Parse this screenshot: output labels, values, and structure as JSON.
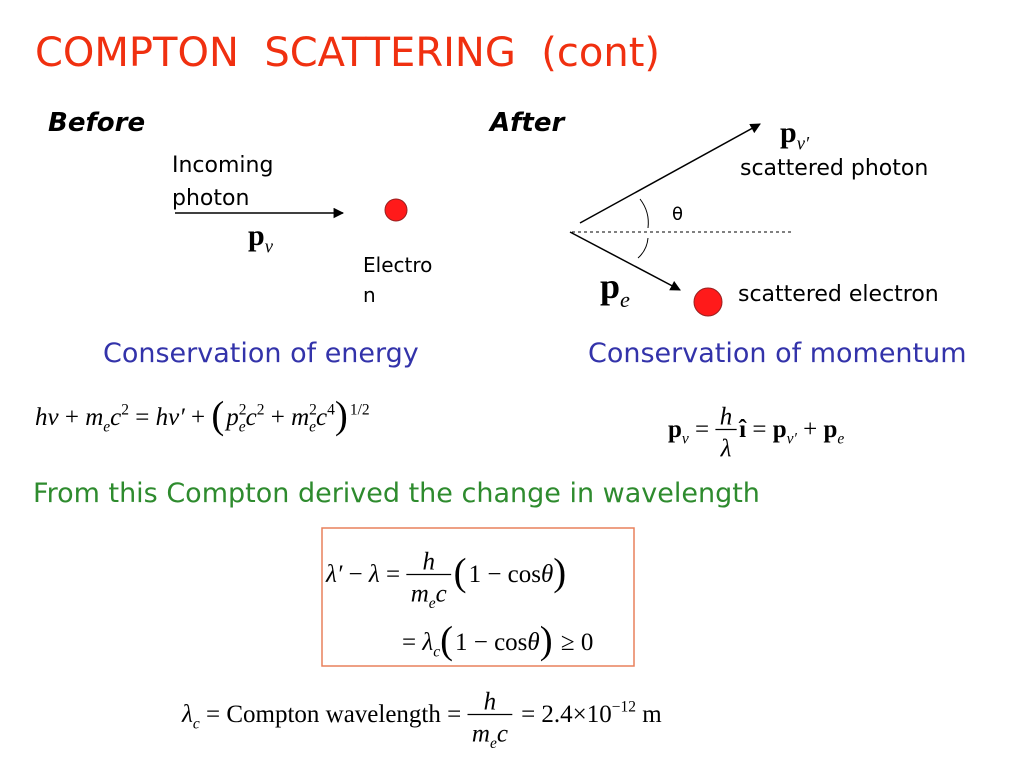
{
  "title": "COMPTON  SCATTERING  (cont)",
  "before": {
    "heading": "Before",
    "incoming_label": [
      "Incoming",
      "photon"
    ],
    "photon_momentum": [
      [
        "p",
        "b"
      ],
      [
        "ν",
        "sub"
      ]
    ],
    "electron_label": [
      "Electro",
      "n"
    ]
  },
  "after": {
    "heading": "After",
    "photon_momentum": [
      [
        "p",
        "b"
      ],
      [
        "ν′",
        "sub"
      ]
    ],
    "photon_label": "scattered photon",
    "angle": "θ",
    "electron_momentum": [
      [
        "p",
        "b"
      ],
      [
        "e",
        "sub"
      ]
    ],
    "electron_label": "scattered electron"
  },
  "energy": {
    "heading": "Conservation of energy",
    "equation": [
      [
        "h",
        "i"
      ],
      [
        "ν",
        "i"
      ],
      [
        " + ",
        "r"
      ],
      [
        "m",
        "i"
      ],
      [
        "e",
        "sub"
      ],
      [
        "c",
        "i"
      ],
      [
        "2",
        "sup"
      ],
      [
        " = ",
        "r"
      ],
      [
        "h",
        "i"
      ],
      [
        "ν′",
        "i"
      ],
      [
        " + ",
        "r"
      ],
      [
        "(",
        "big"
      ],
      [
        "p",
        "i"
      ],
      [
        "2",
        "supstack"
      ],
      [
        "e",
        "sub"
      ],
      [
        "c",
        "i"
      ],
      [
        "2",
        "sup"
      ],
      [
        " + ",
        "r"
      ],
      [
        "m",
        "i"
      ],
      [
        "2",
        "supstack"
      ],
      [
        "e",
        "sub"
      ],
      [
        "c",
        "i"
      ],
      [
        "4",
        "sup"
      ],
      [
        ")",
        "big"
      ],
      [
        "1/2",
        "sup"
      ]
    ]
  },
  "momentum": {
    "heading": "Conservation of momentum",
    "equation": [
      [
        "p",
        "b"
      ],
      [
        "ν",
        "sub"
      ],
      [
        " = ",
        "r"
      ],
      {
        "num": [
          [
            "h",
            "i"
          ]
        ],
        "den": [
          [
            "λ",
            "i"
          ]
        ]
      },
      [
        "î",
        "b"
      ],
      [
        " = ",
        "r"
      ],
      [
        "p",
        "b"
      ],
      [
        "ν′",
        "sub"
      ],
      [
        " + ",
        "r"
      ],
      [
        "p",
        "b"
      ],
      [
        "e",
        "sub"
      ]
    ]
  },
  "derivation": {
    "text": "From this Compton derived the change in wavelength",
    "line1": [
      [
        "λ′",
        "i"
      ],
      [
        " − ",
        "r"
      ],
      [
        "λ",
        "i"
      ],
      [
        " = ",
        "r"
      ],
      {
        "num": [
          [
            "h",
            "i"
          ]
        ],
        "den": [
          [
            "m",
            "i"
          ],
          [
            "e",
            "sub"
          ],
          [
            "c",
            "i"
          ]
        ]
      },
      [
        "(",
        "big"
      ],
      [
        "1 − cos",
        "r"
      ],
      [
        "θ",
        "i"
      ],
      [
        ")",
        "big"
      ]
    ],
    "line2": [
      [
        "= ",
        "r"
      ],
      [
        "λ",
        "i"
      ],
      [
        "c",
        "sub"
      ],
      [
        "(",
        "big"
      ],
      [
        "1 − cos",
        "r"
      ],
      [
        "θ",
        "i"
      ],
      [
        ")",
        "big"
      ],
      [
        " ≥ 0",
        "r"
      ]
    ]
  },
  "compton_wavelength": [
    [
      "λ",
      "i"
    ],
    [
      "c",
      "sub"
    ],
    [
      " = ",
      "r"
    ],
    [
      "Compton wavelength",
      "r"
    ],
    [
      " = ",
      "r"
    ],
    {
      "num": [
        [
          "h",
          "i"
        ]
      ],
      "den": [
        [
          "m",
          "i"
        ],
        [
          "e",
          "sub"
        ],
        [
          "c",
          "i"
        ]
      ]
    },
    [
      " = 2.4×10",
      "r"
    ],
    [
      "−12",
      "sup"
    ],
    [
      " m",
      "r"
    ]
  ]
}
